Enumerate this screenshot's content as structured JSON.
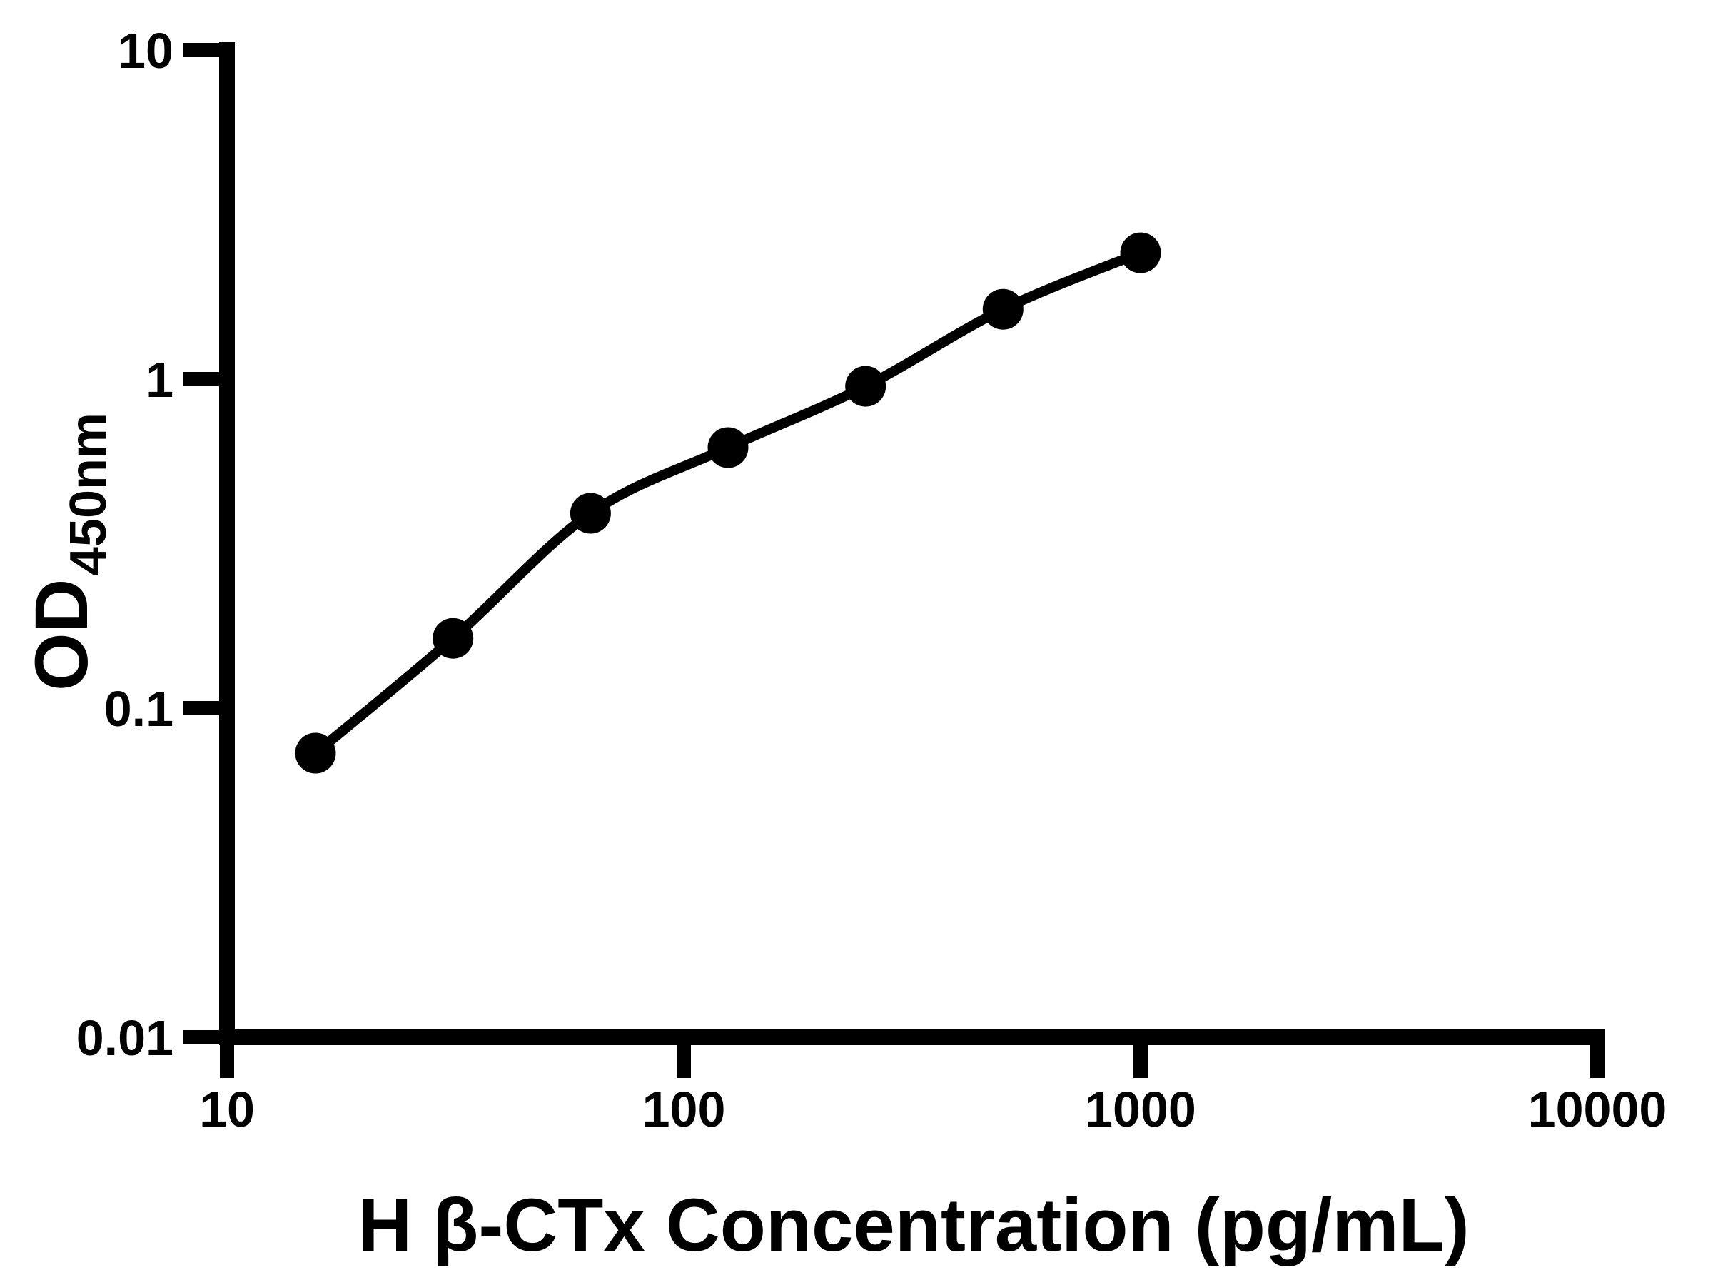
{
  "chart_data": {
    "type": "scatter",
    "title": "",
    "xlabel": "H β-CTx Concentration (pg/mL)",
    "ylabel_main": "OD",
    "ylabel_sub": "450nm",
    "x": [
      15.625,
      31.25,
      62.5,
      125,
      250,
      500,
      1000
    ],
    "y": [
      0.073,
      0.163,
      0.391,
      0.619,
      0.951,
      1.63,
      2.42
    ],
    "x_scale": "log10",
    "y_scale": "log10",
    "xlim": [
      10,
      10000
    ],
    "ylim": [
      0.01,
      10
    ],
    "x_ticks": [
      10,
      100,
      1000,
      10000
    ],
    "x_tick_labels": [
      "10",
      "100",
      "1000",
      "10000"
    ],
    "y_ticks": [
      10,
      1,
      0.1,
      0.01
    ],
    "y_tick_labels": [
      "10",
      "1",
      "0.1",
      "0.01"
    ],
    "grid": false,
    "legend": false,
    "line_color": "#000000",
    "marker_color": "#000000",
    "background": "#ffffff"
  }
}
